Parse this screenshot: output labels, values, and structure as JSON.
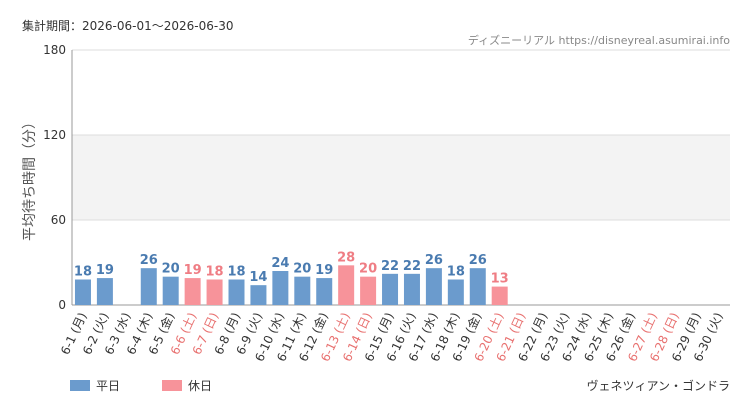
{
  "chart_data": {
    "type": "bar",
    "title": "集計期間：2026-06-01〜2026-06-30",
    "source": "ディズニーリアル https://disneyreal.asumirai.info",
    "subtitle": "ヴェネツィアン・ゴンドラ",
    "y_label": "平均待ち時間（分）",
    "categories": [
      "6-1 (月)",
      "6-2 (火)",
      "6-3 (水)",
      "6-4 (木)",
      "6-5 (金)",
      "6-6 (土)",
      "6-7 (日)",
      "6-8 (月)",
      "6-9 (火)",
      "6-10 (水)",
      "6-11 (木)",
      "6-12 (金)",
      "6-13 (土)",
      "6-14 (日)",
      "6-15 (月)",
      "6-16 (火)",
      "6-17 (水)",
      "6-18 (木)",
      "6-19 (金)",
      "6-20 (土)",
      "6-21 (日)",
      "6-22 (月)",
      "6-23 (火)",
      "6-24 (水)",
      "6-25 (木)",
      "6-26 (金)",
      "6-27 (土)",
      "6-28 (日)",
      "6-29 (月)",
      "6-30 (火)"
    ],
    "category_colors": [
      "#333",
      "#333",
      "#333",
      "#333",
      "#333",
      "#e8706f",
      "#e8706f",
      "#333",
      "#333",
      "#333",
      "#333",
      "#333",
      "#e8706f",
      "#e8706f",
      "#333",
      "#333",
      "#333",
      "#333",
      "#333",
      "#e8706f",
      "#e8706f",
      "#333",
      "#333",
      "#333",
      "#333",
      "#333",
      "#e8706f",
      "#e8706f",
      "#333",
      "#333"
    ],
    "series": [
      {
        "name": "平日",
        "color": "#6b9bcd",
        "label_color": "#4a7bb0",
        "values": [
          18,
          19,
          null,
          26,
          20,
          null,
          null,
          18,
          14,
          24,
          20,
          19,
          null,
          null,
          22,
          22,
          26,
          18,
          26,
          null,
          null,
          null,
          null,
          null,
          null,
          null,
          null,
          null,
          null,
          null
        ]
      },
      {
        "name": "休日",
        "color": "#f7939a",
        "label_color": "#ef7d84",
        "values": [
          null,
          null,
          null,
          null,
          null,
          19,
          18,
          null,
          null,
          null,
          null,
          null,
          28,
          20,
          null,
          null,
          null,
          null,
          null,
          13,
          null,
          null,
          null,
          null,
          null,
          null,
          null,
          null,
          null,
          null
        ]
      }
    ],
    "ylim": [
      0,
      180
    ],
    "yticks": [
      0,
      60,
      120,
      180
    ],
    "grid": true
  }
}
